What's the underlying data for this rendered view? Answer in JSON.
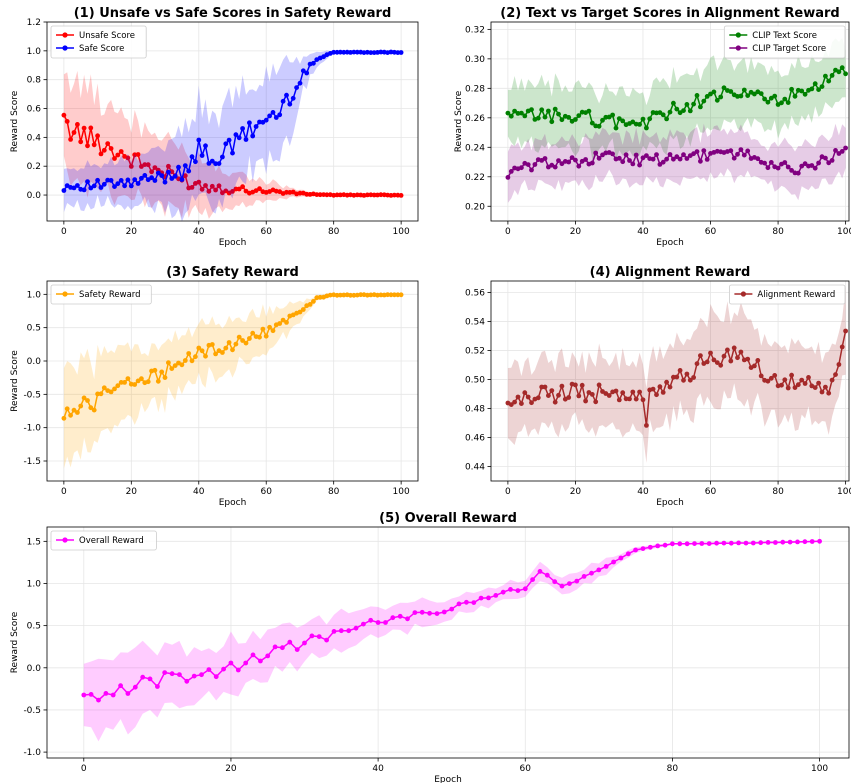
{
  "chart_data": [
    {
      "type": "line",
      "title": "(1) Unsafe vs Safe Scores in Safety Reward",
      "xlabel": "Epoch",
      "ylabel": "Reward Score",
      "xlim": [
        -5,
        105
      ],
      "ylim": [
        -0.18,
        1.2
      ],
      "xticks": [
        0,
        20,
        40,
        60,
        80,
        100
      ],
      "yticks": [
        0.0,
        0.2,
        0.4,
        0.6,
        0.8,
        1.0,
        1.2
      ],
      "ytick_labels": [
        "0.0",
        "0.2",
        "0.4",
        "0.6",
        "0.8",
        "1.0",
        "1.2"
      ],
      "grid": true,
      "legend": "top-left",
      "series": [
        {
          "name": "Unsafe Score",
          "color": "#ff0000",
          "points": [
            [
              0,
              0.48
            ],
            [
              10,
              0.37
            ],
            [
              20,
              0.25
            ],
            [
              30,
              0.15
            ],
            [
              40,
              0.07
            ],
            [
              50,
              0.04
            ],
            [
              60,
              0.03
            ],
            [
              70,
              0.01
            ],
            [
              80,
              0.0
            ],
            [
              90,
              0.0
            ],
            [
              100,
              0.0
            ]
          ],
          "band": [
            0.35,
            0.3,
            0.27,
            0.24,
            0.18,
            0.12,
            0.07,
            0.02,
            0.01,
            0.01,
            0.01
          ]
        },
        {
          "name": "Safe Score",
          "color": "#0000ff",
          "points": [
            [
              0,
              0.06
            ],
            [
              10,
              0.07
            ],
            [
              20,
              0.08
            ],
            [
              30,
              0.13
            ],
            [
              35,
              0.18
            ],
            [
              40,
              0.3
            ],
            [
              45,
              0.25
            ],
            [
              50,
              0.33
            ],
            [
              55,
              0.45
            ],
            [
              60,
              0.52
            ],
            [
              65,
              0.6
            ],
            [
              70,
              0.8
            ],
            [
              75,
              0.95
            ],
            [
              80,
              0.99
            ],
            [
              90,
              0.99
            ],
            [
              100,
              0.99
            ]
          ],
          "band": [
            0.13,
            0.13,
            0.15,
            0.2,
            0.3,
            0.33,
            0.3,
            0.33,
            0.3,
            0.3,
            0.3,
            0.15,
            0.05,
            0.01,
            0.01,
            0.01
          ]
        }
      ]
    },
    {
      "type": "line",
      "title": "(2) Text vs Target Scores in Alignment Reward",
      "xlabel": "Epoch",
      "ylabel": "Reward Score",
      "xlim": [
        -5,
        101
      ],
      "ylim": [
        0.19,
        0.325
      ],
      "xticks": [
        0,
        20,
        40,
        60,
        80,
        100
      ],
      "yticks": [
        0.2,
        0.22,
        0.24,
        0.26,
        0.28,
        0.3,
        0.32
      ],
      "ytick_labels": [
        "0.20",
        "0.22",
        "0.24",
        "0.26",
        "0.28",
        "0.30",
        "0.32"
      ],
      "grid": true,
      "legend": "top-right",
      "series": [
        {
          "name": "CLIP Text Score",
          "color": "#008000",
          "points": [
            [
              0,
              0.26
            ],
            [
              10,
              0.262
            ],
            [
              20,
              0.261
            ],
            [
              30,
              0.258
            ],
            [
              40,
              0.256
            ],
            [
              50,
              0.266
            ],
            [
              60,
              0.275
            ],
            [
              70,
              0.276
            ],
            [
              80,
              0.272
            ],
            [
              90,
              0.278
            ],
            [
              100,
              0.292
            ]
          ],
          "band": [
            0.02,
            0.02,
            0.02,
            0.02,
            0.02,
            0.02,
            0.02,
            0.02,
            0.02,
            0.02,
            0.02
          ]
        },
        {
          "name": "CLIP Target Score",
          "color": "#800080",
          "points": [
            [
              0,
              0.222
            ],
            [
              10,
              0.23
            ],
            [
              20,
              0.23
            ],
            [
              30,
              0.234
            ],
            [
              40,
              0.231
            ],
            [
              50,
              0.232
            ],
            [
              60,
              0.235
            ],
            [
              70,
              0.236
            ],
            [
              80,
              0.226
            ],
            [
              90,
              0.226
            ],
            [
              100,
              0.239
            ]
          ],
          "band": [
            0.015,
            0.015,
            0.015,
            0.015,
            0.015,
            0.015,
            0.015,
            0.015,
            0.015,
            0.015,
            0.015
          ]
        }
      ]
    },
    {
      "type": "line",
      "title": "(3) Safety Reward",
      "xlabel": "Epoch",
      "ylabel": "Reward Score",
      "xlim": [
        -5,
        105
      ],
      "ylim": [
        -1.8,
        1.2
      ],
      "xticks": [
        0,
        20,
        40,
        60,
        80,
        100
      ],
      "yticks": [
        -1.5,
        -1.0,
        -0.5,
        0.0,
        0.5,
        1.0
      ],
      "ytick_labels": [
        "-1.5",
        "-1.0",
        "-0.5",
        "0.0",
        "0.5",
        "1.0"
      ],
      "grid": true,
      "legend": "top-left",
      "series": [
        {
          "name": "Safety Reward",
          "color": "#ffa500",
          "points": [
            [
              0,
              -0.88
            ],
            [
              10,
              -0.55
            ],
            [
              20,
              -0.35
            ],
            [
              30,
              -0.15
            ],
            [
              40,
              0.12
            ],
            [
              50,
              0.25
            ],
            [
              60,
              0.42
            ],
            [
              70,
              0.75
            ],
            [
              75,
              0.95
            ],
            [
              80,
              0.99
            ],
            [
              90,
              0.99
            ],
            [
              100,
              0.99
            ]
          ],
          "band": [
            0.75,
            0.6,
            0.5,
            0.45,
            0.4,
            0.35,
            0.3,
            0.15,
            0.05,
            0.02,
            0.02,
            0.02
          ]
        }
      ]
    },
    {
      "type": "line",
      "title": "(4) Alignment Reward",
      "xlabel": "Epoch",
      "ylabel": "",
      "xlim": [
        -5,
        101
      ],
      "ylim": [
        0.43,
        0.568
      ],
      "xticks": [
        0,
        20,
        40,
        60,
        80,
        100
      ],
      "yticks": [
        0.44,
        0.46,
        0.48,
        0.5,
        0.52,
        0.54,
        0.56
      ],
      "ytick_labels": [
        "0.44",
        "0.46",
        "0.48",
        "0.50",
        "0.52",
        "0.54",
        "0.56"
      ],
      "grid": true,
      "legend": "top-right",
      "series": [
        {
          "name": "Alignment Reward",
          "color": "#a52a2a",
          "points": [
            [
              0,
              0.481
            ],
            [
              10,
              0.49
            ],
            [
              20,
              0.491
            ],
            [
              30,
              0.49
            ],
            [
              40,
              0.488
            ],
            [
              41,
              0.463
            ],
            [
              42,
              0.492
            ],
            [
              50,
              0.5
            ],
            [
              60,
              0.515
            ],
            [
              70,
              0.515
            ],
            [
              80,
              0.5
            ],
            [
              90,
              0.498
            ],
            [
              95,
              0.49
            ],
            [
              100,
              0.531
            ]
          ],
          "band": [
            0.025,
            0.025,
            0.025,
            0.025,
            0.025,
            0.025,
            0.025,
            0.025,
            0.028,
            0.028,
            0.025,
            0.025,
            0.025,
            0.025
          ]
        }
      ]
    },
    {
      "type": "line",
      "title": "(5) Overall Reward",
      "xlabel": "Epoch",
      "ylabel": "Reward Score",
      "xlim": [
        -5,
        104
      ],
      "ylim": [
        -1.07,
        1.67
      ],
      "xticks": [
        0,
        20,
        40,
        60,
        80,
        100
      ],
      "yticks": [
        -1.0,
        -0.5,
        0.0,
        0.5,
        1.0,
        1.5
      ],
      "ytick_labels": [
        "-1.0",
        "-0.5",
        "0.0",
        "0.5",
        "1.0",
        "1.5"
      ],
      "grid": true,
      "legend": "top-left",
      "series": [
        {
          "name": "Overall Reward",
          "color": "#ff00ff",
          "points": [
            [
              0,
              -0.42
            ],
            [
              10,
              -0.15
            ],
            [
              20,
              0.0
            ],
            [
              30,
              0.3
            ],
            [
              40,
              0.55
            ],
            [
              50,
              0.7
            ],
            [
              55,
              0.85
            ],
            [
              60,
              0.95
            ],
            [
              62,
              1.15
            ],
            [
              65,
              0.95
            ],
            [
              70,
              1.15
            ],
            [
              75,
              1.4
            ],
            [
              80,
              1.47
            ],
            [
              90,
              1.48
            ],
            [
              100,
              1.5
            ]
          ],
          "band": [
            0.45,
            0.35,
            0.3,
            0.25,
            0.18,
            0.12,
            0.1,
            0.1,
            0.1,
            0.1,
            0.1,
            0.03,
            0.01,
            0.01,
            0.01
          ]
        }
      ]
    }
  ]
}
